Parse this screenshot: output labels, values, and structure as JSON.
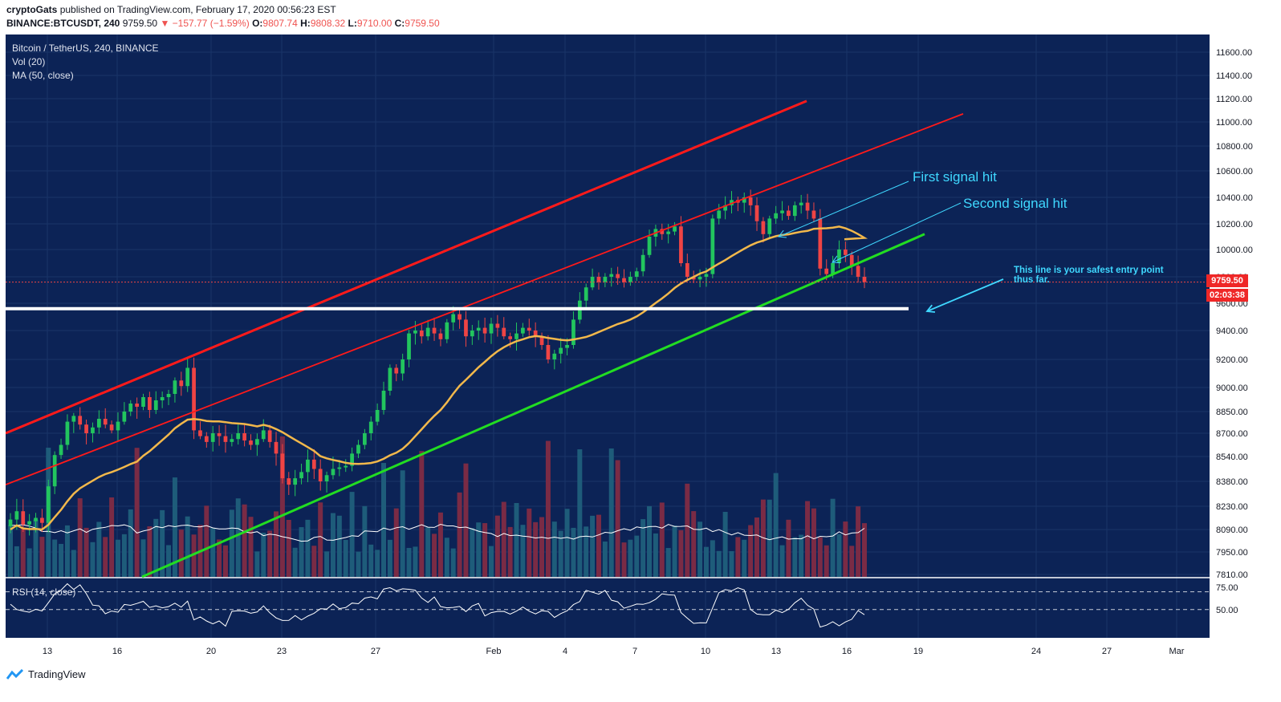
{
  "header": {
    "author": "cryptoGats",
    "published": "published on TradingView.com, February 17, 2020 00:56:23 EST",
    "symbol": "BINANCE:BTCUSDT, 240",
    "last": "9759.50",
    "change": "▼ −157.77 (−1.59%)",
    "o_label": "O:",
    "o_value": "9807.74",
    "h_label": "H:",
    "h_value": "9808.32",
    "l_label": "L:",
    "l_value": "9710.00",
    "c_label": "C:",
    "c_value": "9759.50"
  },
  "legend": {
    "title": "Bitcoin / TetherUS, 240, BINANCE",
    "volume": "Vol (20)",
    "ma": "MA (50, close)",
    "rsi": "RSI (14, close)"
  },
  "annotations": {
    "first_signal": "First signal hit",
    "second_signal": "Second signal hit",
    "entry_note": "This line is your safest entry point thus far."
  },
  "price_tag": "9759.50",
  "time_tag": "02:03:38",
  "footer": {
    "brand": "TradingView"
  },
  "colors": {
    "background": "#0c2356",
    "up": "#22c55e",
    "down": "#ef4444",
    "channel": "#ff1a1a",
    "support": "#22dd22",
    "ma": "#f2b84b",
    "annotation": "#3fd8ff"
  },
  "chart_data": {
    "type": "candlestick",
    "title": "Bitcoin / TetherUS, 240, BINANCE",
    "y_axis_labels": [
      "11600.00",
      "11400.00",
      "11200.00",
      "11000.00",
      "10800.00",
      "10600.00",
      "10400.00",
      "10200.00",
      "10000.00",
      "9800.00",
      "9600.00",
      "9400.00",
      "9200.00",
      "9000.00",
      "8850.00",
      "8700.00",
      "8540.00",
      "8380.00",
      "8230.00",
      "8090.00",
      "7950.00",
      "7810.00"
    ],
    "x_axis_labels": [
      "13",
      "16",
      "20",
      "23",
      "27",
      "Feb",
      "4",
      "7",
      "10",
      "13",
      "16",
      "19",
      "24",
      "27",
      "Mar"
    ],
    "rsi_axis_labels": [
      "75.00",
      "50.00"
    ],
    "rsi_levels": [
      70,
      50
    ],
    "last_price": 9759.5,
    "ma_period": 50,
    "rsi_period": 14,
    "volume_period": 20,
    "horizontal_support": 9560,
    "close_series": [
      8150,
      8200,
      8120,
      8140,
      8160,
      8130,
      8350,
      8550,
      8620,
      8780,
      8820,
      8760,
      8700,
      8740,
      8800,
      8760,
      8720,
      8780,
      8850,
      8900,
      8880,
      8940,
      8860,
      8920,
      8940,
      8960,
      9050,
      9010,
      9140,
      8720,
      8680,
      8640,
      8700,
      8680,
      8640,
      8660,
      8700,
      8650,
      8620,
      8660,
      8720,
      8640,
      8560,
      8400,
      8360,
      8400,
      8440,
      8520,
      8460,
      8380,
      8420,
      8460,
      8470,
      8480,
      8560,
      8620,
      8700,
      8780,
      8860,
      8980,
      9140,
      9100,
      9200,
      9380,
      9400,
      9360,
      9420,
      9380,
      9340,
      9460,
      9520,
      9480,
      9360,
      9400,
      9420,
      9380,
      9450,
      9420,
      9360,
      9340,
      9380,
      9420,
      9400,
      9360,
      9300,
      9200,
      9240,
      9280,
      9300,
      9480,
      9620,
      9720,
      9800,
      9760,
      9800,
      9820,
      9790,
      9760,
      9800,
      9840,
      9960,
      10100,
      10160,
      10120,
      10140,
      10180,
      9900,
      9800,
      9780,
      9800,
      9820,
      10240,
      10300,
      10340,
      10380,
      10360,
      10400,
      10340,
      10220,
      10120,
      10240,
      10280,
      10300,
      10260,
      10340,
      10360,
      10300,
      10240,
      9860,
      9820,
      9900,
      10000,
      9960,
      9880,
      9800,
      9760
    ]
  }
}
